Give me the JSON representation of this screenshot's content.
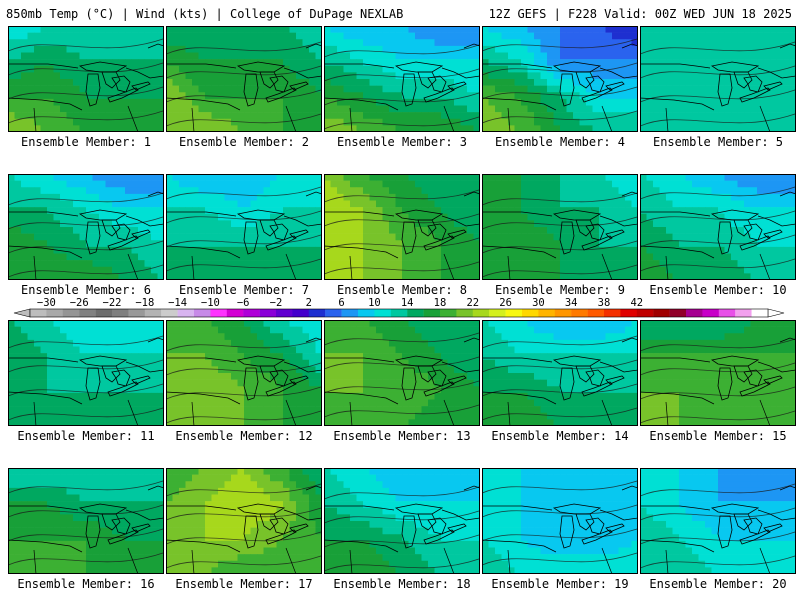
{
  "header": {
    "left": "850mb Temp (°C) | Wind (kts) | College of DuPage NEXLAB",
    "right": "12Z GEFS | F228 Valid: 00Z WED JUN 18 2025"
  },
  "panel_label_prefix": "Ensemble Member: ",
  "members": [
    {
      "label": "Ensemble Member: 1",
      "temp_values_c": [
        [
          10,
          12,
          12,
          14,
          12
        ],
        [
          14,
          16,
          14,
          14,
          14
        ],
        [
          18,
          18,
          16,
          16,
          16
        ],
        [
          22,
          20,
          18,
          18,
          18
        ]
      ]
    },
    {
      "label": "Ensemble Member: 2",
      "temp_values_c": [
        [
          14,
          14,
          14,
          14,
          12
        ],
        [
          18,
          16,
          16,
          16,
          14
        ],
        [
          22,
          18,
          18,
          18,
          16
        ],
        [
          22,
          22,
          20,
          18,
          18
        ]
      ]
    },
    {
      "label": "Ensemble Member: 3",
      "temp_values_c": [
        [
          10,
          8,
          8,
          6,
          6
        ],
        [
          14,
          12,
          10,
          10,
          10
        ],
        [
          18,
          16,
          14,
          14,
          12
        ],
        [
          22,
          20,
          18,
          18,
          16
        ]
      ]
    },
    {
      "label": "Ensemble Member: 4",
      "temp_values_c": [
        [
          10,
          8,
          6,
          4,
          2
        ],
        [
          14,
          12,
          6,
          6,
          6
        ],
        [
          20,
          18,
          14,
          10,
          10
        ],
        [
          22,
          20,
          16,
          14,
          14
        ]
      ]
    },
    {
      "label": "Ensemble Member: 5",
      "temp_values_c": [
        [
          12,
          12,
          12,
          14,
          14
        ],
        [
          12,
          12,
          12,
          12,
          14
        ],
        [
          14,
          12,
          12,
          12,
          14
        ],
        [
          14,
          14,
          14,
          14,
          14
        ]
      ]
    },
    {
      "label": "Ensemble Member: 6",
      "temp_values_c": [
        [
          12,
          10,
          8,
          6,
          6
        ],
        [
          14,
          14,
          12,
          10,
          10
        ],
        [
          18,
          16,
          14,
          14,
          12
        ],
        [
          18,
          18,
          18,
          16,
          14
        ]
      ]
    },
    {
      "label": "Ensemble Member: 7",
      "temp_values_c": [
        [
          10,
          8,
          8,
          10,
          10
        ],
        [
          12,
          12,
          10,
          12,
          12
        ],
        [
          14,
          14,
          14,
          14,
          14
        ],
        [
          16,
          16,
          16,
          16,
          14
        ]
      ]
    },
    {
      "label": "Ensemble Member: 8",
      "temp_values_c": [
        [
          22,
          18,
          16,
          14,
          14
        ],
        [
          24,
          22,
          18,
          16,
          14
        ],
        [
          24,
          22,
          20,
          18,
          16
        ],
        [
          22,
          22,
          20,
          18,
          18
        ]
      ]
    },
    {
      "label": "Ensemble Member: 9",
      "temp_values_c": [
        [
          16,
          16,
          14,
          12,
          10
        ],
        [
          18,
          16,
          14,
          14,
          12
        ],
        [
          18,
          18,
          16,
          14,
          14
        ],
        [
          18,
          16,
          16,
          14,
          14
        ]
      ]
    },
    {
      "label": "Ensemble Member: 10",
      "temp_values_c": [
        [
          12,
          10,
          8,
          6,
          6
        ],
        [
          14,
          12,
          12,
          10,
          10
        ],
        [
          16,
          14,
          14,
          12,
          12
        ],
        [
          18,
          16,
          16,
          14,
          14
        ]
      ]
    },
    {
      "label": "Ensemble Member: 11",
      "temp_values_c": [
        [
          14,
          12,
          10,
          10,
          10
        ],
        [
          16,
          14,
          12,
          12,
          12
        ],
        [
          16,
          14,
          14,
          14,
          14
        ],
        [
          16,
          16,
          16,
          16,
          16
        ]
      ]
    },
    {
      "label": "Ensemble Member: 12",
      "temp_values_c": [
        [
          18,
          18,
          16,
          12,
          10
        ],
        [
          20,
          20,
          18,
          16,
          12
        ],
        [
          22,
          22,
          20,
          18,
          16
        ],
        [
          22,
          20,
          20,
          18,
          18
        ]
      ]
    },
    {
      "label": "Ensemble Member: 13",
      "temp_values_c": [
        [
          18,
          18,
          16,
          14,
          14
        ],
        [
          20,
          20,
          18,
          16,
          14
        ],
        [
          20,
          20,
          20,
          18,
          16
        ],
        [
          18,
          18,
          18,
          16,
          16
        ]
      ]
    },
    {
      "label": "Ensemble Member: 14",
      "temp_values_c": [
        [
          12,
          10,
          8,
          8,
          10
        ],
        [
          14,
          12,
          12,
          12,
          12
        ],
        [
          16,
          16,
          14,
          14,
          14
        ],
        [
          18,
          18,
          16,
          16,
          16
        ]
      ]
    },
    {
      "label": "Ensemble Member: 15",
      "temp_values_c": [
        [
          14,
          14,
          14,
          16,
          16
        ],
        [
          18,
          18,
          18,
          18,
          18
        ],
        [
          20,
          20,
          18,
          18,
          18
        ],
        [
          20,
          20,
          18,
          18,
          18
        ]
      ]
    },
    {
      "label": "Ensemble Member: 16",
      "temp_values_c": [
        [
          12,
          12,
          12,
          12,
          12
        ],
        [
          16,
          16,
          14,
          14,
          14
        ],
        [
          18,
          18,
          18,
          16,
          16
        ],
        [
          18,
          18,
          18,
          16,
          16
        ]
      ]
    },
    {
      "label": "Ensemble Member: 17",
      "temp_values_c": [
        [
          18,
          20,
          22,
          18,
          14
        ],
        [
          20,
          22,
          24,
          22,
          16
        ],
        [
          22,
          22,
          22,
          20,
          18
        ],
        [
          20,
          20,
          18,
          18,
          18
        ]
      ]
    },
    {
      "label": "Ensemble Member: 18",
      "temp_values_c": [
        [
          12,
          10,
          8,
          8,
          8
        ],
        [
          14,
          12,
          10,
          10,
          10
        ],
        [
          16,
          16,
          14,
          12,
          12
        ],
        [
          18,
          18,
          16,
          14,
          14
        ]
      ]
    },
    {
      "label": "Ensemble Member: 19",
      "temp_values_c": [
        [
          12,
          10,
          8,
          8,
          8
        ],
        [
          12,
          10,
          8,
          8,
          8
        ],
        [
          12,
          10,
          8,
          8,
          10
        ],
        [
          14,
          12,
          12,
          12,
          12
        ]
      ]
    },
    {
      "label": "Ensemble Member: 20",
      "temp_values_c": [
        [
          12,
          10,
          8,
          6,
          6
        ],
        [
          12,
          10,
          8,
          8,
          8
        ],
        [
          14,
          12,
          10,
          10,
          10
        ],
        [
          14,
          14,
          12,
          12,
          12
        ]
      ]
    }
  ],
  "colorbar": {
    "ticks": [
      "−30",
      "−26",
      "−22",
      "−18",
      "−14",
      "−10",
      "−6",
      "−2",
      "2",
      "6",
      "10",
      "14",
      "18",
      "22",
      "26",
      "30",
      "34",
      "38",
      "42"
    ],
    "min_c": -32,
    "step_c": 2,
    "colors": [
      "#bdbdbd",
      "#a9a9a9",
      "#959595",
      "#818181",
      "#6d6d6d",
      "#7f7f7f",
      "#999999",
      "#b3b3b3",
      "#cccccc",
      "#d8b4f0",
      "#c78ae8",
      "#ff33ff",
      "#d400d4",
      "#b000d8",
      "#8a00d8",
      "#6000d0",
      "#4400cc",
      "#1e2fd0",
      "#2a63ee",
      "#1d96f4",
      "#08c8f0",
      "#00e0d4",
      "#00c8a0",
      "#00a860",
      "#18a038",
      "#3cb033",
      "#78c32a",
      "#a7d81c",
      "#d4f01e",
      "#f8f810",
      "#ffd800",
      "#ffb400",
      "#ff9600",
      "#ff7a00",
      "#ff5a00",
      "#f43000",
      "#e00000",
      "#c00000",
      "#a00000",
      "#900028",
      "#a60090",
      "#c800c8",
      "#e850e8",
      "#f2a0ee",
      "#ffffff"
    ]
  },
  "palette_hint": {
    "cool": "#00d2c8",
    "warm": "#f03c00"
  }
}
